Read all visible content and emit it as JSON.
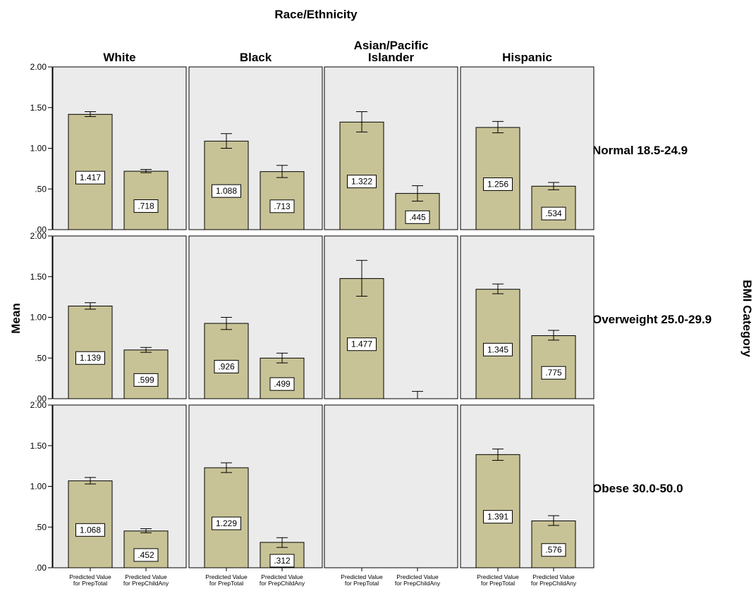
{
  "chart_data": {
    "type": "bar",
    "title": "Race/Ethnicity",
    "ylabel": "Mean",
    "row_title": "BMI Category",
    "columns": [
      "White",
      "Black",
      "Asian/Pacific Islander",
      "Hispanic"
    ],
    "rows": [
      "Normal 18.5-24.9",
      "Overweight 25.0-29.9",
      "Obese 30.0-50.0"
    ],
    "categories": [
      "Predicted Value for PrepTotal",
      "Predicted Value for PrepChildAny"
    ],
    "ylim": [
      0,
      2.0
    ],
    "yticks": [
      ".00",
      ".50",
      "1.00",
      "1.50",
      "2.00"
    ],
    "grid": false,
    "bar_color": "#c8c396",
    "panel_bg": "#ebebeb",
    "panels": [
      {
        "row": "Normal 18.5-24.9",
        "column": "White",
        "values": [
          1.417,
          0.718
        ],
        "labels": [
          "1.417",
          ".718"
        ],
        "err_low": [
          1.39,
          0.7
        ],
        "err_high": [
          1.45,
          0.74
        ]
      },
      {
        "row": "Normal 18.5-24.9",
        "column": "Black",
        "values": [
          1.088,
          0.713
        ],
        "labels": [
          "1.088",
          ".713"
        ],
        "err_low": [
          1.0,
          0.64
        ],
        "err_high": [
          1.18,
          0.79
        ]
      },
      {
        "row": "Normal 18.5-24.9",
        "column": "Asian/Pacific Islander",
        "values": [
          1.322,
          0.445
        ],
        "labels": [
          "1.322",
          ".445"
        ],
        "err_low": [
          1.2,
          0.35
        ],
        "err_high": [
          1.45,
          0.54
        ]
      },
      {
        "row": "Normal 18.5-24.9",
        "column": "Hispanic",
        "values": [
          1.256,
          0.534
        ],
        "labels": [
          "1.256",
          ".534"
        ],
        "err_low": [
          1.19,
          0.49
        ],
        "err_high": [
          1.33,
          0.58
        ]
      },
      {
        "row": "Overweight 25.0-29.9",
        "column": "White",
        "values": [
          1.139,
          0.599
        ],
        "labels": [
          "1.139",
          ".599"
        ],
        "err_low": [
          1.1,
          0.57
        ],
        "err_high": [
          1.18,
          0.63
        ]
      },
      {
        "row": "Overweight 25.0-29.9",
        "column": "Black",
        "values": [
          0.926,
          0.499
        ],
        "labels": [
          ".926",
          ".499"
        ],
        "err_low": [
          0.85,
          0.44
        ],
        "err_high": [
          1.0,
          0.56
        ]
      },
      {
        "row": "Overweight 25.0-29.9",
        "column": "Asian/Pacific Islander",
        "values": [
          1.477,
          0.0
        ],
        "labels": [
          "1.477",
          ""
        ],
        "err_low": [
          1.26,
          0.0
        ],
        "err_high": [
          1.7,
          0.09
        ]
      },
      {
        "row": "Overweight 25.0-29.9",
        "column": "Hispanic",
        "values": [
          1.345,
          0.775
        ],
        "labels": [
          "1.345",
          ".775"
        ],
        "err_low": [
          1.29,
          0.72
        ],
        "err_high": [
          1.41,
          0.84
        ]
      },
      {
        "row": "Obese 30.0-50.0",
        "column": "White",
        "values": [
          1.068,
          0.452
        ],
        "labels": [
          "1.068",
          ".452"
        ],
        "err_low": [
          1.03,
          0.43
        ],
        "err_high": [
          1.11,
          0.48
        ]
      },
      {
        "row": "Obese 30.0-50.0",
        "column": "Black",
        "values": [
          1.229,
          0.312
        ],
        "labels": [
          "1.229",
          ".312"
        ],
        "err_low": [
          1.17,
          0.25
        ],
        "err_high": [
          1.29,
          0.37
        ]
      },
      {
        "row": "Obese 30.0-50.0",
        "column": "Asian/Pacific Islander",
        "values": [
          null,
          null
        ],
        "labels": [
          "",
          ""
        ],
        "err_low": [
          null,
          null
        ],
        "err_high": [
          null,
          null
        ]
      },
      {
        "row": "Obese 30.0-50.0",
        "column": "Hispanic",
        "values": [
          1.391,
          0.576
        ],
        "labels": [
          "1.391",
          ".576"
        ],
        "err_low": [
          1.32,
          0.52
        ],
        "err_high": [
          1.46,
          0.64
        ]
      }
    ]
  }
}
